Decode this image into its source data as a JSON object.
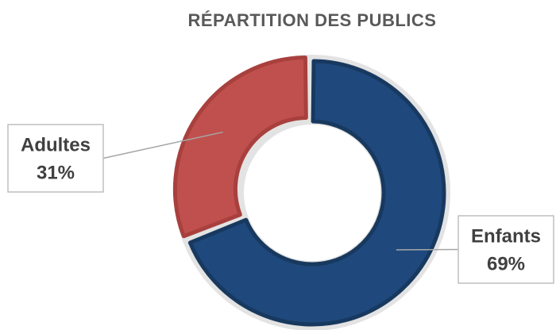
{
  "chart_data": {
    "type": "donut",
    "title": "RÉPARTITION DES PUBLICS",
    "categories": [
      "Enfants",
      "Adultes"
    ],
    "values": [
      69,
      31
    ],
    "value_labels": [
      "69%",
      "31%"
    ],
    "colors": [
      "#1f497d",
      "#c0504d"
    ]
  }
}
